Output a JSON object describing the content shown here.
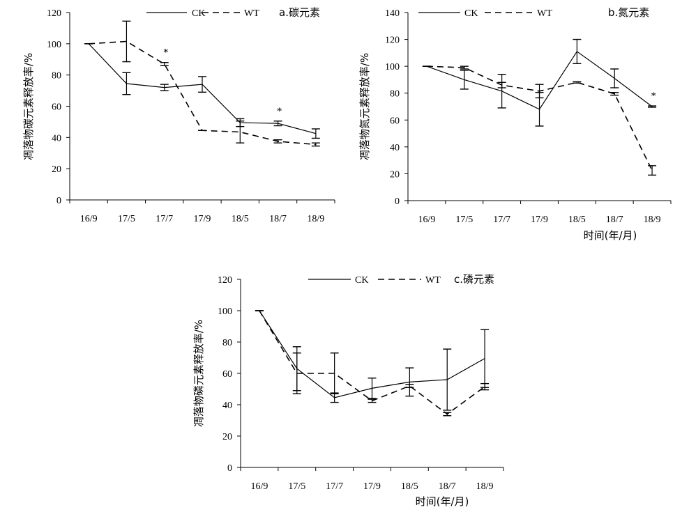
{
  "chart_data": [
    {
      "type": "line",
      "title": "a.碳元素",
      "xlabel": "",
      "ylabel": "凋落物碳元素释放率/%",
      "categories": [
        "16/9",
        "17/5",
        "17/7",
        "17/9",
        "18/5",
        "18/7",
        "18/9"
      ],
      "ylim": [
        0,
        120
      ],
      "yticks": [
        "0",
        "20",
        "40",
        "60",
        "80",
        "100",
        "120"
      ],
      "series": [
        {
          "name": "CK",
          "style": "solid",
          "values": [
            100,
            74.5,
            72,
            74,
            49.5,
            49,
            42.5
          ],
          "err": [
            0,
            7,
            2,
            5,
            2.5,
            1.5,
            3
          ]
        },
        {
          "name": "WT",
          "style": "dashed",
          "values": [
            100,
            101.5,
            87,
            44.5,
            43.5,
            37.5,
            35.5
          ],
          "err": [
            0,
            13,
            1,
            0,
            7,
            1,
            1
          ]
        }
      ],
      "annotations": [
        {
          "text": "*",
          "category": "17/7"
        },
        {
          "text": "*",
          "category": "18/7"
        }
      ],
      "legend": "top"
    },
    {
      "type": "line",
      "title": "b.氮元素",
      "xlabel": "时间(年/月)",
      "ylabel": "凋落物氮元素释放率/%",
      "categories": [
        "16/9",
        "17/5",
        "17/7",
        "17/9",
        "18/5",
        "18/7",
        "18/9"
      ],
      "ylim": [
        0,
        140
      ],
      "yticks": [
        "0",
        "20",
        "40",
        "60",
        "80",
        "100",
        "120",
        "140"
      ],
      "series": [
        {
          "name": "CK",
          "style": "solid",
          "values": [
            100,
            90,
            81.5,
            68,
            111,
            91,
            70
          ],
          "err": [
            0,
            7,
            12.5,
            12.5,
            9,
            7,
            0.5
          ]
        },
        {
          "name": "WT",
          "style": "dashed",
          "values": [
            100,
            99,
            86,
            81.5,
            88,
            79.5,
            22.5
          ],
          "err": [
            0,
            1,
            2,
            5,
            0.5,
            1,
            3.5
          ]
        }
      ],
      "annotations": [
        {
          "text": "*",
          "category": "18/9"
        }
      ],
      "legend": "top"
    },
    {
      "type": "line",
      "title": "c.磷元素",
      "xlabel": "时间(年/月)",
      "ylabel": "凋落物磷元素释放率/%",
      "categories": [
        "16/9",
        "17/5",
        "17/7",
        "17/9",
        "18/5",
        "18/7",
        "18/9"
      ],
      "ylim": [
        0,
        120
      ],
      "yticks": [
        "0",
        "20",
        "40",
        "60",
        "80",
        "100",
        "120"
      ],
      "series": [
        {
          "name": "CK",
          "style": "solid",
          "values": [
            100,
            63,
            44.5,
            50.5,
            54.5,
            56,
            69.5
          ],
          "err": [
            0,
            14,
            3,
            6.5,
            9,
            19.5,
            18.5
          ]
        },
        {
          "name": "WT",
          "style": "dashed",
          "values": [
            100,
            60,
            60,
            42.5,
            52,
            34,
            51.5
          ],
          "err": [
            0,
            13,
            13,
            1,
            1,
            1,
            2
          ]
        }
      ],
      "legend": "top"
    }
  ]
}
